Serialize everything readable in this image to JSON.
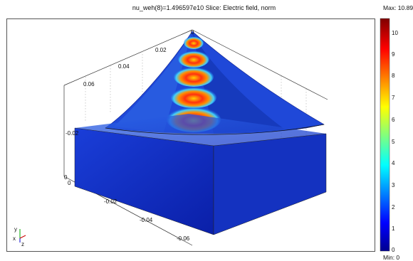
{
  "title": "nu_weh(8)=1.496597e10    Slice: Electric field, norm",
  "colorbar": {
    "max_label": "Max: 10.89",
    "min_label": "Min: 0",
    "ticks": [
      "10",
      "9",
      "8",
      "7",
      "6",
      "5",
      "4",
      "3",
      "2",
      "1",
      "0"
    ]
  },
  "axes": {
    "upper_ticks": [
      "0",
      "0.02",
      "0.04",
      "0.06",
      "-0.02"
    ],
    "lower_ticks": [
      "0",
      "0",
      "-0.02",
      "-0.04",
      "-0.06"
    ]
  },
  "orientation": {
    "y": "y",
    "x": "x",
    "z": "z"
  },
  "colors": {
    "field_low": "#1030c0",
    "field_high": "#e81010",
    "frame": "#555555"
  }
}
